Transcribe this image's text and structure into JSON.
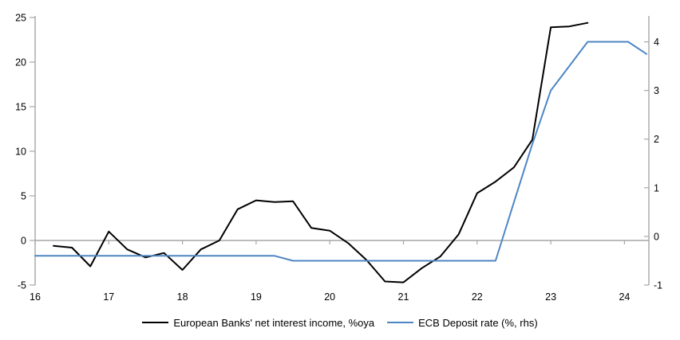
{
  "chart_data": {
    "type": "line",
    "title": "",
    "background_color": "#ffffff",
    "axis_color": "#a6a6a6",
    "text_color": "#000000",
    "grid": false,
    "legend_position": "bottom-center",
    "x_axis": {
      "tick_labels": [
        "16",
        "17",
        "18",
        "19",
        "20",
        "21",
        "22",
        "23",
        "24"
      ],
      "tick_values": [
        16,
        17,
        18,
        19,
        20,
        21,
        22,
        23,
        24
      ],
      "range": [
        16,
        24.33
      ]
    },
    "left_axis": {
      "tick_labels": [
        "-5",
        "0",
        "5",
        "10",
        "15",
        "20",
        "25"
      ],
      "tick_values": [
        -5,
        0,
        5,
        10,
        15,
        20,
        25
      ],
      "range": [
        -5,
        25
      ]
    },
    "right_axis": {
      "tick_labels": [
        "-1",
        "0",
        "1",
        "2",
        "3",
        "4"
      ],
      "tick_values": [
        -1,
        0,
        1,
        2,
        3,
        4
      ],
      "range": [
        -1,
        4.5
      ]
    },
    "series": [
      {
        "name": "European Banks' net interest income, %oya",
        "color": "#000000",
        "width": 2,
        "axis": "left",
        "points": [
          [
            16.25,
            -0.6
          ],
          [
            16.5,
            -0.8
          ],
          [
            16.75,
            -2.9
          ],
          [
            17.0,
            1.0
          ],
          [
            17.25,
            -1.0
          ],
          [
            17.5,
            -1.9
          ],
          [
            17.75,
            -1.4
          ],
          [
            18.0,
            -3.3
          ],
          [
            18.25,
            -1.0
          ],
          [
            18.5,
            0.0
          ],
          [
            18.75,
            3.5
          ],
          [
            19.0,
            4.5
          ],
          [
            19.25,
            4.3
          ],
          [
            19.5,
            4.4
          ],
          [
            19.75,
            1.4
          ],
          [
            20.0,
            1.1
          ],
          [
            20.25,
            -0.3
          ],
          [
            20.5,
            -2.2
          ],
          [
            20.75,
            -4.6
          ],
          [
            21.0,
            -4.7
          ],
          [
            21.25,
            -3.1
          ],
          [
            21.5,
            -1.8
          ],
          [
            21.75,
            0.7
          ],
          [
            22.0,
            5.3
          ],
          [
            22.25,
            6.6
          ],
          [
            22.5,
            8.2
          ],
          [
            22.75,
            11.3
          ],
          [
            23.0,
            23.9
          ],
          [
            23.25,
            24.0
          ],
          [
            23.5,
            24.4
          ]
        ]
      },
      {
        "name": "ECB Deposit rate (%, rhs)",
        "color": "#4e86c3",
        "width": 2,
        "axis": "right",
        "points": [
          [
            16.0,
            -0.4
          ],
          [
            19.25,
            -0.4
          ],
          [
            19.5,
            -0.5
          ],
          [
            22.25,
            -0.5
          ],
          [
            22.5,
            0.7
          ],
          [
            22.75,
            1.9
          ],
          [
            23.0,
            3.0
          ],
          [
            23.25,
            3.5
          ],
          [
            23.5,
            4.0
          ],
          [
            24.05,
            4.0
          ],
          [
            24.3,
            3.75
          ]
        ]
      }
    ]
  }
}
